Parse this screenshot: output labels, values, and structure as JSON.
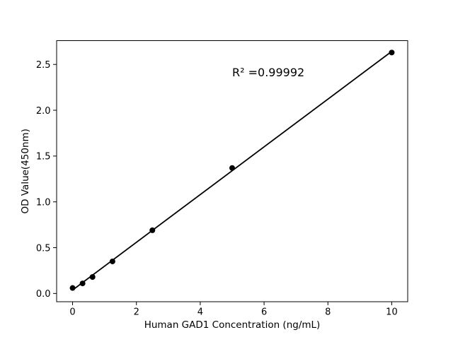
{
  "chart_data": {
    "type": "scatter",
    "title": "",
    "xlabel": "Human GAD1 Concentration (ng/mL)",
    "ylabel": "OD Value(450nm)",
    "x": [
      0,
      0.3125,
      0.625,
      1.25,
      2.5,
      5,
      10
    ],
    "y": [
      0.06,
      0.11,
      0.18,
      0.35,
      0.69,
      1.37,
      2.63
    ],
    "fit_line": {
      "kind": "linear_regression",
      "x_start": 0,
      "x_end": 10
    },
    "annotation": {
      "text": "R² =0.99992",
      "x": 5.0,
      "y": 2.37
    },
    "xlim": [
      -0.5,
      10.5
    ],
    "ylim": [
      -0.09,
      2.76
    ],
    "xticks": {
      "values": [
        0,
        2,
        4,
        6,
        8,
        10
      ],
      "labels": [
        "0",
        "2",
        "4",
        "6",
        "8",
        "10"
      ]
    },
    "yticks": {
      "values": [
        0,
        0.5,
        1.0,
        1.5,
        2.0,
        2.5
      ],
      "labels": [
        "0.0",
        "0.5",
        "1.0",
        "1.5",
        "2.0",
        "2.5"
      ]
    },
    "grid": false,
    "legend": null,
    "colors": {
      "marker": "#000000",
      "line": "#000000",
      "axis": "#000000",
      "background": "#ffffff"
    }
  }
}
